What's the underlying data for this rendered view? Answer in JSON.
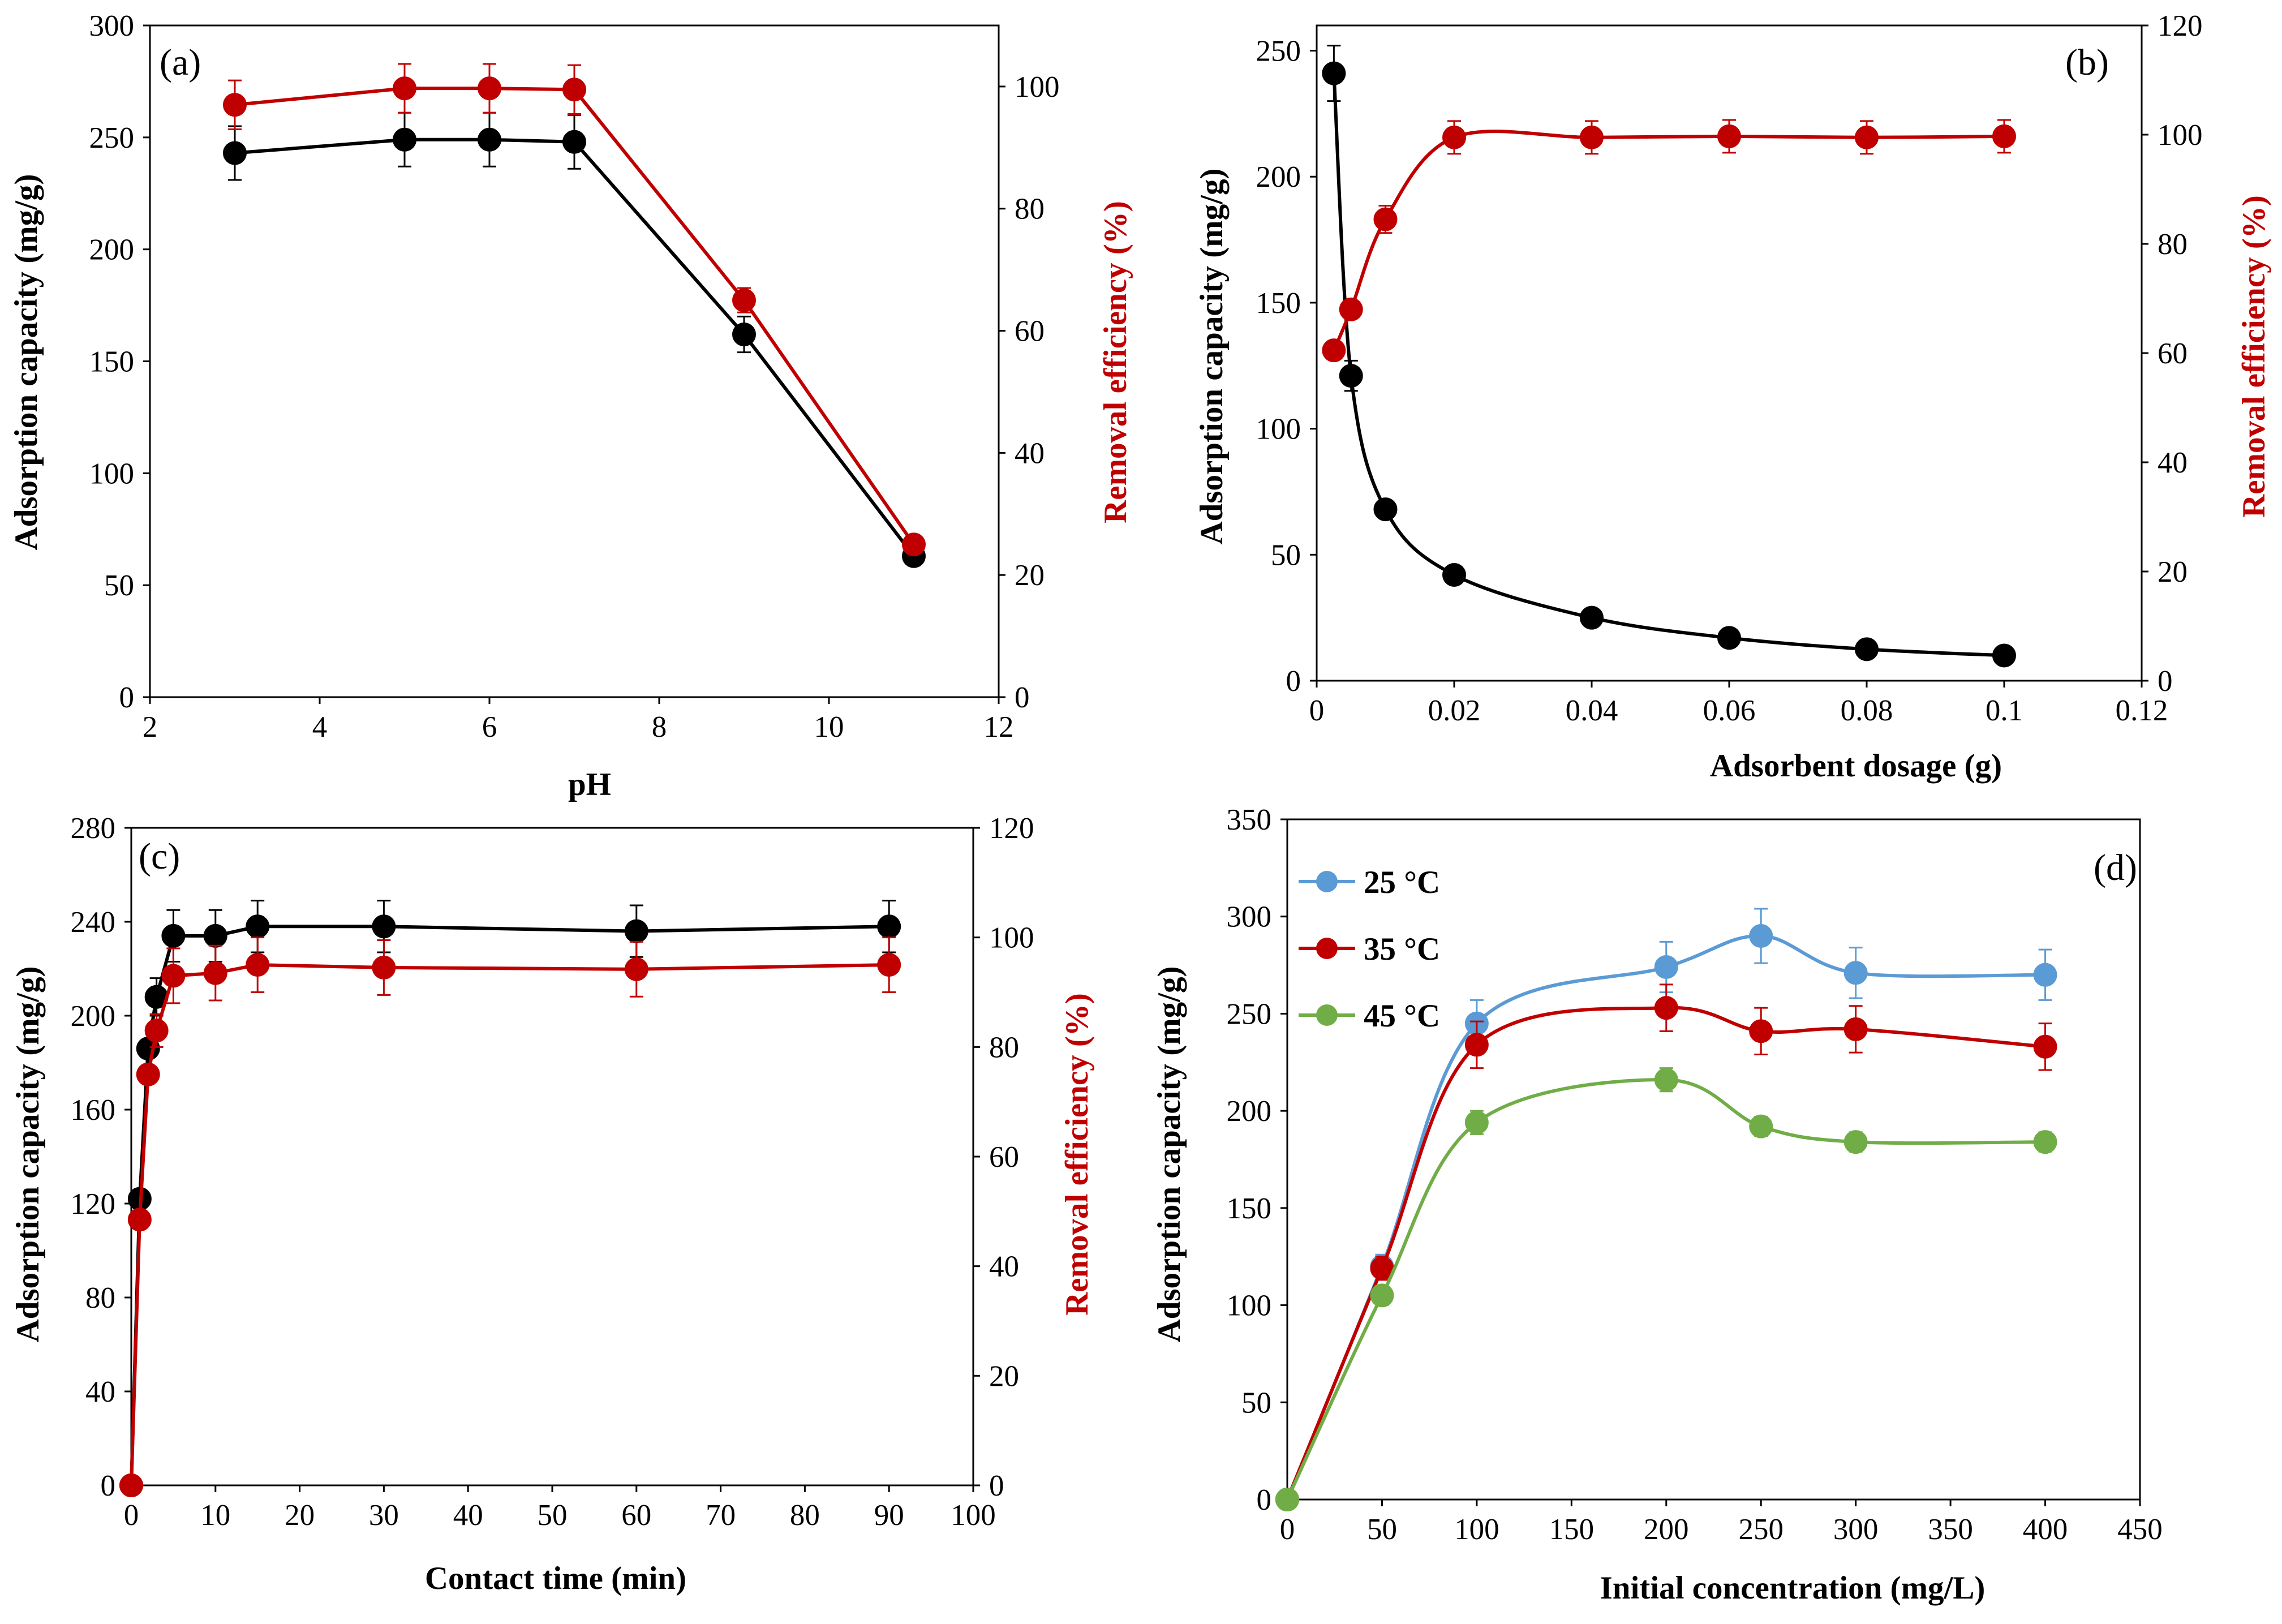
{
  "figure": {
    "colors": {
      "black": "#000000",
      "red": "#c00000",
      "blue": "#5b9bd5",
      "green": "#70ad47",
      "frame": "#000000"
    }
  },
  "chart_data": [
    {
      "panel": "(a)",
      "type": "line",
      "xlabel": "pH",
      "ylabel": "Adsorption capacity (mg/g)",
      "y2label": "Removal efficiency (%)",
      "xlim": [
        2,
        12
      ],
      "xticks": [
        2,
        4,
        6,
        8,
        10,
        12
      ],
      "ylim": [
        0,
        300
      ],
      "yticks": [
        0,
        50,
        100,
        150,
        200,
        250,
        300
      ],
      "y2lim": [
        0,
        110
      ],
      "y2ticks": [
        0,
        20,
        40,
        60,
        80,
        100
      ],
      "series": [
        {
          "name": "Adsorption capacity",
          "axis": "y",
          "color": "#000000",
          "smooth": false,
          "x": [
            3,
            5,
            6,
            7,
            9,
            11
          ],
          "values": [
            243,
            249,
            249,
            248,
            162,
            63
          ],
          "err": [
            12,
            12,
            12,
            12,
            8,
            0
          ]
        },
        {
          "name": "Removal efficiency",
          "axis": "y2",
          "color": "#c00000",
          "smooth": false,
          "x": [
            3,
            5,
            6,
            7,
            9,
            11
          ],
          "values": [
            97,
            99.7,
            99.7,
            99.5,
            65,
            25
          ],
          "err": [
            4,
            4,
            4,
            4,
            2,
            0
          ]
        }
      ]
    },
    {
      "panel": "(b)",
      "type": "line",
      "xlabel": "Adsorbent dosage (g)",
      "ylabel": "Adsorption capacity (mg/g)",
      "y2label": "Removal efficiency (%)",
      "xlim": [
        0,
        0.12
      ],
      "xticks": [
        0,
        0.02,
        0.04,
        0.06,
        0.08,
        0.1,
        0.12
      ],
      "xticklabels": [
        "0",
        "0.02",
        "0.04",
        "0.06",
        "0.08",
        "0.1",
        "0.12"
      ],
      "ylim": [
        0,
        260
      ],
      "yticks": [
        0,
        50,
        100,
        150,
        200,
        250
      ],
      "y2lim": [
        0,
        120
      ],
      "y2ticks": [
        0,
        20,
        40,
        60,
        80,
        100,
        120
      ],
      "series": [
        {
          "name": "Adsorption capacity",
          "axis": "y",
          "color": "#000000",
          "smooth": true,
          "x": [
            0.0025,
            0.005,
            0.01,
            0.02,
            0.04,
            0.06,
            0.08,
            0.1
          ],
          "values": [
            241,
            121,
            68,
            42,
            25,
            17,
            12.5,
            10
          ],
          "err": [
            11,
            6,
            0,
            0,
            0,
            0,
            0,
            0
          ]
        },
        {
          "name": "Removal efficiency",
          "axis": "y2",
          "color": "#c00000",
          "smooth": true,
          "x": [
            0.0025,
            0.005,
            0.01,
            0.02,
            0.04,
            0.06,
            0.08,
            0.1
          ],
          "values": [
            60.5,
            68,
            84.5,
            99.5,
            99.5,
            99.7,
            99.5,
            99.7
          ],
          "err": [
            0,
            0,
            2.5,
            3,
            3,
            3,
            3,
            3
          ]
        }
      ]
    },
    {
      "panel": "(c)",
      "type": "line",
      "xlabel": "Contact time (min)",
      "ylabel": "Adsorption capacity (mg/g)",
      "y2label": "Removal efficiency (%)",
      "xlim": [
        0,
        100
      ],
      "xticks": [
        0,
        10,
        20,
        30,
        40,
        50,
        60,
        70,
        80,
        90,
        100
      ],
      "ylim": [
        0,
        280
      ],
      "yticks": [
        0,
        40,
        80,
        120,
        160,
        200,
        240,
        280
      ],
      "y2lim": [
        0,
        120
      ],
      "y2ticks": [
        0,
        20,
        40,
        60,
        80,
        100,
        120
      ],
      "series": [
        {
          "name": "Adsorption capacity",
          "axis": "y",
          "color": "#000000",
          "smooth": false,
          "x": [
            0,
            1,
            2,
            3,
            5,
            10,
            15,
            30,
            60,
            90
          ],
          "values": [
            0,
            122,
            186,
            208,
            234,
            234,
            238,
            238,
            236,
            238
          ],
          "err": [
            0,
            0,
            0,
            8,
            11,
            11,
            11,
            11,
            11,
            11
          ]
        },
        {
          "name": "Removal efficiency",
          "axis": "y2",
          "color": "#c00000",
          "smooth": false,
          "x": [
            0,
            1,
            2,
            3,
            5,
            10,
            15,
            30,
            60,
            90
          ],
          "values": [
            0,
            48.5,
            75,
            83,
            93,
            93.5,
            95,
            94.5,
            94.2,
            95
          ],
          "err": [
            0,
            0,
            0,
            3,
            5,
            5,
            5,
            5,
            5,
            5
          ]
        }
      ]
    },
    {
      "panel": "(d)",
      "type": "line",
      "xlabel": "Initial  concentration  (mg/L)",
      "ylabel": "Adsorption capacity (mg/g)",
      "xlim": [
        0,
        450
      ],
      "xticks": [
        0,
        50,
        100,
        150,
        200,
        250,
        300,
        350,
        400,
        450
      ],
      "ylim": [
        0,
        350
      ],
      "yticks": [
        0,
        50,
        100,
        150,
        200,
        250,
        300,
        350
      ],
      "legend": "top-left",
      "series": [
        {
          "name": "25 °C",
          "axis": "y",
          "color": "#5b9bd5",
          "smooth": true,
          "x": [
            0,
            50,
            100,
            200,
            250,
            300,
            400
          ],
          "values": [
            0,
            120,
            245,
            274,
            290,
            271,
            270
          ],
          "err": [
            0,
            6,
            12,
            13,
            14,
            13,
            13
          ]
        },
        {
          "name": "35 °C",
          "axis": "y",
          "color": "#c00000",
          "smooth": true,
          "x": [
            0,
            50,
            100,
            200,
            250,
            300,
            400
          ],
          "values": [
            0,
            119,
            234,
            253,
            241,
            242,
            233
          ],
          "err": [
            0,
            6,
            12,
            12,
            12,
            12,
            12
          ]
        },
        {
          "name": "45 °C",
          "axis": "y",
          "color": "#70ad47",
          "smooth": true,
          "x": [
            0,
            50,
            100,
            200,
            250,
            300,
            400
          ],
          "values": [
            0,
            105,
            194,
            216,
            192,
            184,
            184
          ],
          "err": [
            0,
            5,
            6,
            6,
            5,
            5,
            5
          ]
        }
      ]
    }
  ]
}
